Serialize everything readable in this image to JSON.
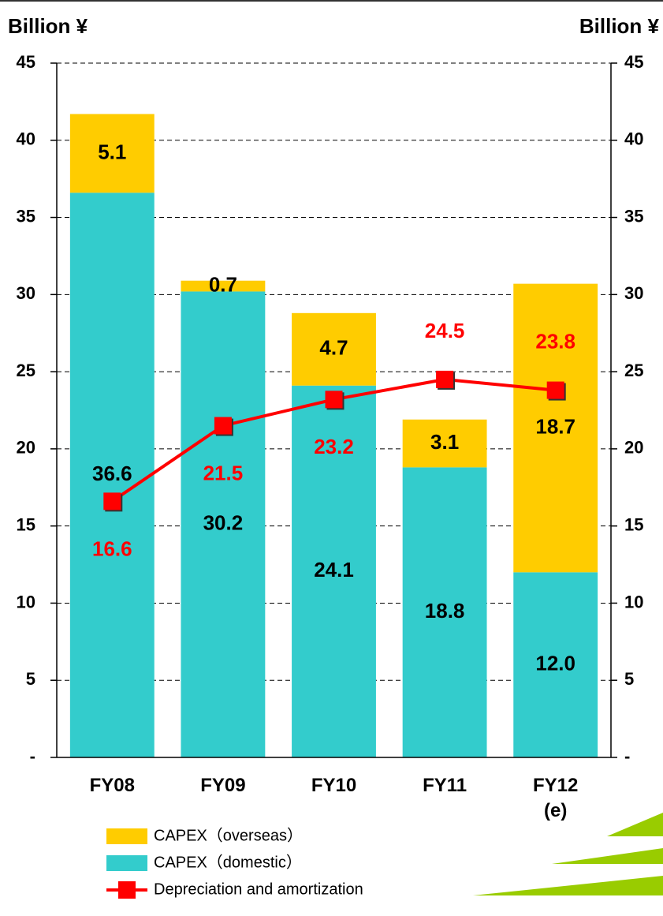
{
  "chart_data": {
    "type": "bar",
    "y_label": "Billion ¥",
    "y2_label": "Billion ¥",
    "categories": [
      "FY08",
      "FY09",
      "FY10",
      "FY11",
      "FY12\n(e)"
    ],
    "stacked": true,
    "series": [
      {
        "name": "CAPEX（domestic）",
        "color": "#33cccc",
        "type": "bar",
        "values": [
          36.6,
          30.2,
          24.1,
          18.8,
          12.0
        ],
        "value_labels": [
          "36.6",
          "30.2",
          "24.1",
          "18.8",
          "12.0"
        ]
      },
      {
        "name": "CAPEX（overseas）",
        "color": "#ffcc00",
        "type": "bar",
        "values": [
          5.1,
          0.7,
          4.7,
          3.1,
          18.7
        ]
      },
      {
        "name": "Depreciation and amortization",
        "color": "#ff0000",
        "type": "line",
        "axis": "y2",
        "values": [
          16.6,
          21.5,
          23.2,
          24.5,
          23.8
        ]
      }
    ],
    "ylim": [
      0,
      45
    ],
    "yticks": [
      {
        "value": 0,
        "label": "-"
      },
      5,
      10,
      15,
      20,
      25,
      30,
      35,
      40,
      45
    ],
    "y2lim": [
      0,
      45
    ],
    "y2ticks": [
      {
        "value": 0,
        "label": "-"
      },
      5,
      10,
      15,
      20,
      25,
      30,
      35,
      40,
      45
    ],
    "grid": true,
    "legend": "bottom"
  }
}
